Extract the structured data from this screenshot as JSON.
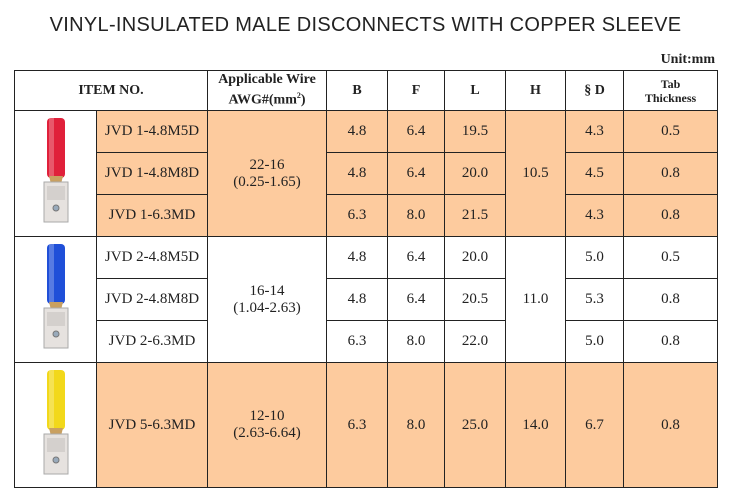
{
  "title": "VINYL-INSULATED MALE DISCONNECTS WITH COPPER SLEEVE",
  "unit": "Unit:mm",
  "headers": {
    "item": "ITEM NO.",
    "wire_line1": "Applicable Wire",
    "wire_line2": "AWG#(mm",
    "wire_sup": "2",
    "wire_close": ")",
    "b": "B",
    "f": "F",
    "l": "L",
    "h": "H",
    "d": "§ D",
    "tab1": "Tab",
    "tab2": "Thickness"
  },
  "groups": [
    {
      "color": "#e0203a",
      "wire": "22-16",
      "wire_mm": "(0.25-1.65)",
      "h": "10.5",
      "shaded": true,
      "rows": [
        {
          "item": "JVD 1-4.8M5D",
          "b": "4.8",
          "f": "6.4",
          "l": "19.5",
          "d": "4.3",
          "t": "0.5"
        },
        {
          "item": "JVD 1-4.8M8D",
          "b": "4.8",
          "f": "6.4",
          "l": "20.0",
          "d": "4.5",
          "t": "0.8"
        },
        {
          "item": "JVD 1-6.3MD",
          "b": "6.3",
          "f": "8.0",
          "l": "21.5",
          "d": "4.3",
          "t": "0.8"
        }
      ]
    },
    {
      "color": "#1f4fd8",
      "wire": "16-14",
      "wire_mm": "(1.04-2.63)",
      "h": "11.0",
      "shaded": false,
      "rows": [
        {
          "item": "JVD 2-4.8M5D",
          "b": "4.8",
          "f": "6.4",
          "l": "20.0",
          "d": "5.0",
          "t": "0.5"
        },
        {
          "item": "JVD 2-4.8M8D",
          "b": "4.8",
          "f": "6.4",
          "l": "20.5",
          "d": "5.3",
          "t": "0.8"
        },
        {
          "item": "JVD 2-6.3MD",
          "b": "6.3",
          "f": "8.0",
          "l": "22.0",
          "d": "5.0",
          "t": "0.8"
        }
      ]
    },
    {
      "color": "#f2d81a",
      "wire": "12-10",
      "wire_mm": "(2.63-6.64)",
      "h": "14.0",
      "shaded": true,
      "rows": [
        {
          "item": "JVD 5-6.3MD",
          "b": "6.3",
          "f": "8.0",
          "l": "25.0",
          "d": "6.7",
          "t": "0.8"
        }
      ]
    }
  ]
}
